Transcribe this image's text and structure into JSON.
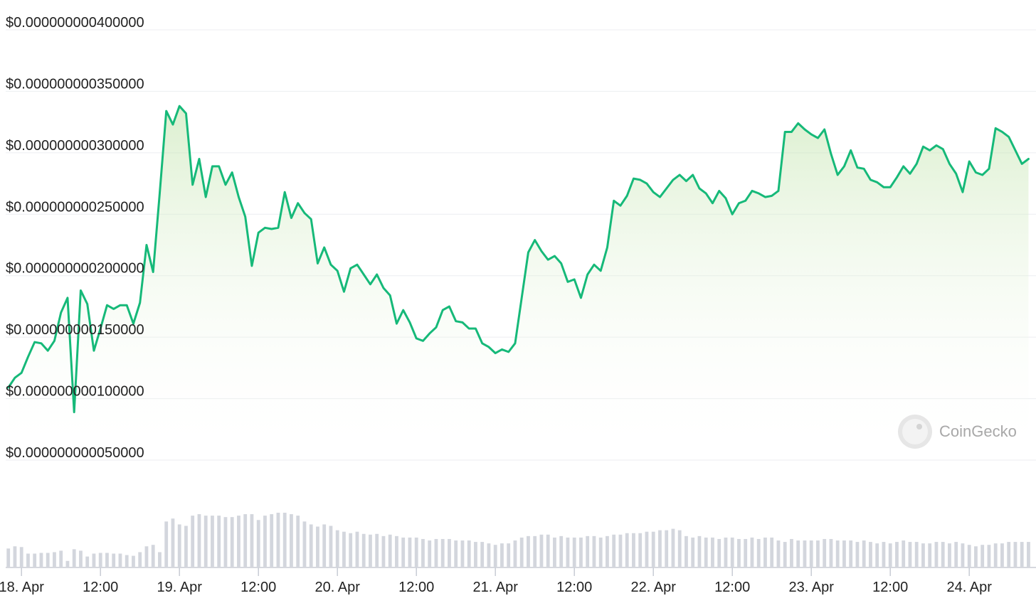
{
  "chart_data": {
    "type": "line",
    "watermark": "CoinGecko",
    "color": "#16b979",
    "grid": true,
    "xlim": [
      -2.4,
      153.6
    ],
    "ylim": [
      5e-11,
      4e-10
    ],
    "yticks": [
      {
        "value": 4e-10,
        "label": "$0.000000000400000"
      },
      {
        "value": 3.5e-10,
        "label": "$0.000000000350000"
      },
      {
        "value": 3e-10,
        "label": "$0.000000000300000"
      },
      {
        "value": 2.5e-10,
        "label": "$0.000000000250000"
      },
      {
        "value": 2e-10,
        "label": "$0.000000000200000"
      },
      {
        "value": 1.5e-10,
        "label": "$0.000000000150000"
      },
      {
        "value": 1e-10,
        "label": "$0.000000000100000"
      },
      {
        "value": 5e-11,
        "label": "$0.000000000050000"
      }
    ],
    "xticks": [
      {
        "value": 0,
        "label": "18. Apr"
      },
      {
        "value": 12,
        "label": "12:00"
      },
      {
        "value": 24,
        "label": "19. Apr"
      },
      {
        "value": 36,
        "label": "12:00"
      },
      {
        "value": 48,
        "label": "20. Apr"
      },
      {
        "value": 60,
        "label": "12:00"
      },
      {
        "value": 72,
        "label": "21. Apr"
      },
      {
        "value": 84,
        "label": "12:00"
      },
      {
        "value": 96,
        "label": "22. Apr"
      },
      {
        "value": 108,
        "label": "12:00"
      },
      {
        "value": 120,
        "label": "23. Apr"
      },
      {
        "value": 132,
        "label": "12:00"
      },
      {
        "value": 144,
        "label": "24. Apr"
      }
    ],
    "x": [
      -2,
      -1,
      0,
      1,
      2,
      3,
      4,
      5,
      6,
      7,
      8,
      9,
      10,
      11,
      12,
      13,
      14,
      15,
      16,
      17,
      18,
      19,
      20,
      21,
      22,
      23,
      24,
      25,
      26,
      27,
      28,
      29,
      30,
      31,
      32,
      33,
      34,
      35,
      36,
      37,
      38,
      39,
      40,
      41,
      42,
      43,
      44,
      45,
      46,
      47,
      48,
      49,
      50,
      51,
      52,
      53,
      54,
      55,
      56,
      57,
      58,
      59,
      60,
      61,
      62,
      63,
      64,
      65,
      66,
      67,
      68,
      69,
      70,
      71,
      72,
      73,
      74,
      75,
      76,
      77,
      78,
      79,
      80,
      81,
      82,
      83,
      84,
      85,
      86,
      87,
      88,
      89,
      90,
      91,
      92,
      93,
      94,
      95,
      96,
      97,
      98,
      99,
      100,
      101,
      102,
      103,
      104,
      105,
      106,
      107,
      108,
      109,
      110,
      111,
      112,
      113,
      114,
      115,
      116,
      117,
      118,
      119,
      120,
      121,
      122,
      123,
      124,
      125,
      126,
      127,
      128,
      129,
      130,
      131,
      132,
      133,
      134,
      135,
      136,
      137,
      138,
      139,
      140,
      141,
      142,
      143,
      144,
      145,
      146,
      147,
      148,
      149,
      150,
      151,
      152,
      153
    ],
    "values": [
      1.09e-10,
      1.17e-10,
      1.21e-10,
      1.34e-10,
      1.46e-10,
      1.45e-10,
      1.39e-10,
      1.47e-10,
      1.7e-10,
      1.82e-10,
      8.9e-11,
      1.88e-10,
      1.77e-10,
      1.39e-10,
      1.57e-10,
      1.76e-10,
      1.73e-10,
      1.76e-10,
      1.76e-10,
      1.61e-10,
      1.78e-10,
      2.25e-10,
      2.03e-10,
      2.67e-10,
      3.34e-10,
      3.23e-10,
      3.38e-10,
      3.32e-10,
      2.74e-10,
      2.95e-10,
      2.64e-10,
      2.89e-10,
      2.89e-10,
      2.74e-10,
      2.84e-10,
      2.64e-10,
      2.48e-10,
      2.08e-10,
      2.35e-10,
      2.39e-10,
      2.38e-10,
      2.39e-10,
      2.68e-10,
      2.47e-10,
      2.59e-10,
      2.51e-10,
      2.46e-10,
      2.1e-10,
      2.23e-10,
      2.09e-10,
      2.04e-10,
      1.87e-10,
      2.06e-10,
      2.09e-10,
      2.01e-10,
      1.93e-10,
      2.01e-10,
      1.9e-10,
      1.84e-10,
      1.61e-10,
      1.72e-10,
      1.62e-10,
      1.49e-10,
      1.47e-10,
      1.53e-10,
      1.58e-10,
      1.72e-10,
      1.75e-10,
      1.63e-10,
      1.62e-10,
      1.57e-10,
      1.57e-10,
      1.45e-10,
      1.42e-10,
      1.37e-10,
      1.4e-10,
      1.38e-10,
      1.45e-10,
      1.82e-10,
      2.19e-10,
      2.29e-10,
      2.2e-10,
      2.13e-10,
      2.16e-10,
      2.1e-10,
      1.95e-10,
      1.97e-10,
      1.82e-10,
      2.01e-10,
      2.09e-10,
      2.04e-10,
      2.23e-10,
      2.61e-10,
      2.57e-10,
      2.65e-10,
      2.79e-10,
      2.78e-10,
      2.75e-10,
      2.68e-10,
      2.64e-10,
      2.71e-10,
      2.78e-10,
      2.82e-10,
      2.77e-10,
      2.82e-10,
      2.71e-10,
      2.67e-10,
      2.59e-10,
      2.69e-10,
      2.63e-10,
      2.5e-10,
      2.59e-10,
      2.61e-10,
      2.69e-10,
      2.67e-10,
      2.64e-10,
      2.65e-10,
      2.69e-10,
      3.17e-10,
      3.17e-10,
      3.24e-10,
      3.19e-10,
      3.15e-10,
      3.12e-10,
      3.19e-10,
      2.99e-10,
      2.82e-10,
      2.89e-10,
      3.02e-10,
      2.88e-10,
      2.87e-10,
      2.78e-10,
      2.76e-10,
      2.72e-10,
      2.72e-10,
      2.8e-10,
      2.89e-10,
      2.83e-10,
      2.91e-10,
      3.05e-10,
      3.02e-10,
      3.06e-10,
      3.03e-10,
      2.91e-10,
      2.83e-10,
      2.68e-10,
      2.93e-10,
      2.84e-10,
      2.82e-10,
      2.87e-10,
      3.2e-10,
      3.17e-10,
      3.13e-10,
      3.02e-10,
      2.91e-10,
      2.95e-10
    ],
    "volume": [
      25,
      28,
      27,
      18,
      18,
      19,
      19,
      20,
      22,
      8,
      24,
      22,
      14,
      18,
      19,
      19,
      18,
      18,
      16,
      15,
      20,
      28,
      30,
      20,
      62,
      66,
      58,
      56,
      70,
      72,
      70,
      70,
      70,
      68,
      68,
      70,
      72,
      72,
      64,
      70,
      72,
      74,
      74,
      72,
      70,
      62,
      58,
      55,
      58,
      56,
      50,
      48,
      46,
      48,
      45,
      44,
      45,
      42,
      44,
      42,
      40,
      40,
      40,
      38,
      36,
      38,
      38,
      38,
      36,
      36,
      36,
      34,
      34,
      32,
      30,
      32,
      32,
      36,
      40,
      42,
      42,
      44,
      44,
      40,
      42,
      40,
      40,
      40,
      42,
      42,
      40,
      42,
      44,
      44,
      46,
      46,
      46,
      48,
      48,
      50,
      50,
      52,
      50,
      42,
      40,
      42,
      40,
      40,
      38,
      40,
      40,
      38,
      38,
      40,
      38,
      40,
      40,
      36,
      34,
      38,
      36,
      36,
      36,
      36,
      38,
      38,
      36,
      36,
      36,
      34,
      36,
      34,
      32,
      34,
      32,
      34,
      36,
      34,
      34,
      32,
      32,
      34,
      34,
      32,
      34,
      32,
      30,
      28,
      30,
      30,
      32,
      32,
      34,
      34,
      34,
      34
    ]
  }
}
